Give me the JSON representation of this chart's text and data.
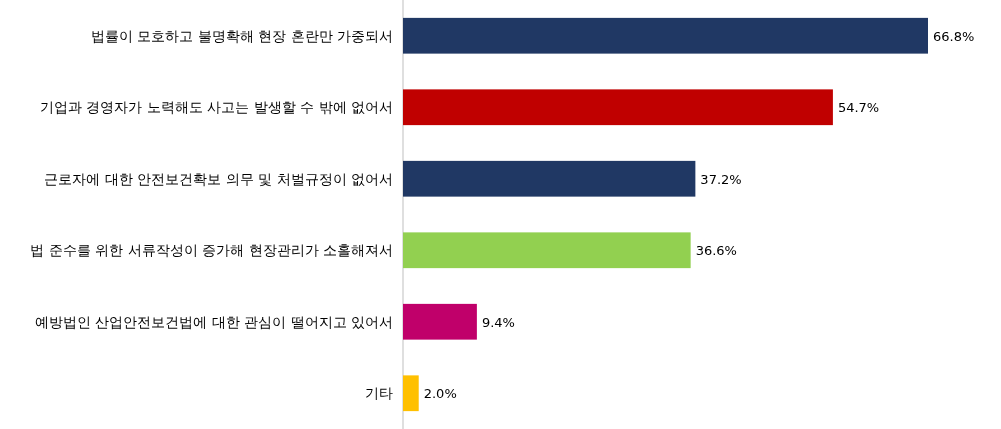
{
  "chart_data": {
    "type": "bar",
    "orientation": "horizontal",
    "categories": [
      "법률이 모호하고 불명확해 현장 혼란만 가중되서",
      "기업과 경영자가 노력해도 사고는 발생할 수 밖에 없어서",
      "근로자에 대한 안전보건확보 의무 및 처벌규정이 없어서",
      "법 준수를 위한 서류작성이 증가해 현장관리가 소홀해져서",
      "예방법인 산업안전보건법에 대한 관심이 떨어지고 있어서",
      "기타"
    ],
    "values": [
      66.8,
      54.7,
      37.2,
      36.6,
      9.4,
      2.0
    ],
    "colors": [
      "#203864",
      "#c00000",
      "#203864",
      "#92d050",
      "#c0006a",
      "#ffc000"
    ],
    "value_labels": [
      "66.8%",
      "54.7%",
      "37.2%",
      "36.6%",
      "9.4%",
      "2.0%"
    ]
  }
}
